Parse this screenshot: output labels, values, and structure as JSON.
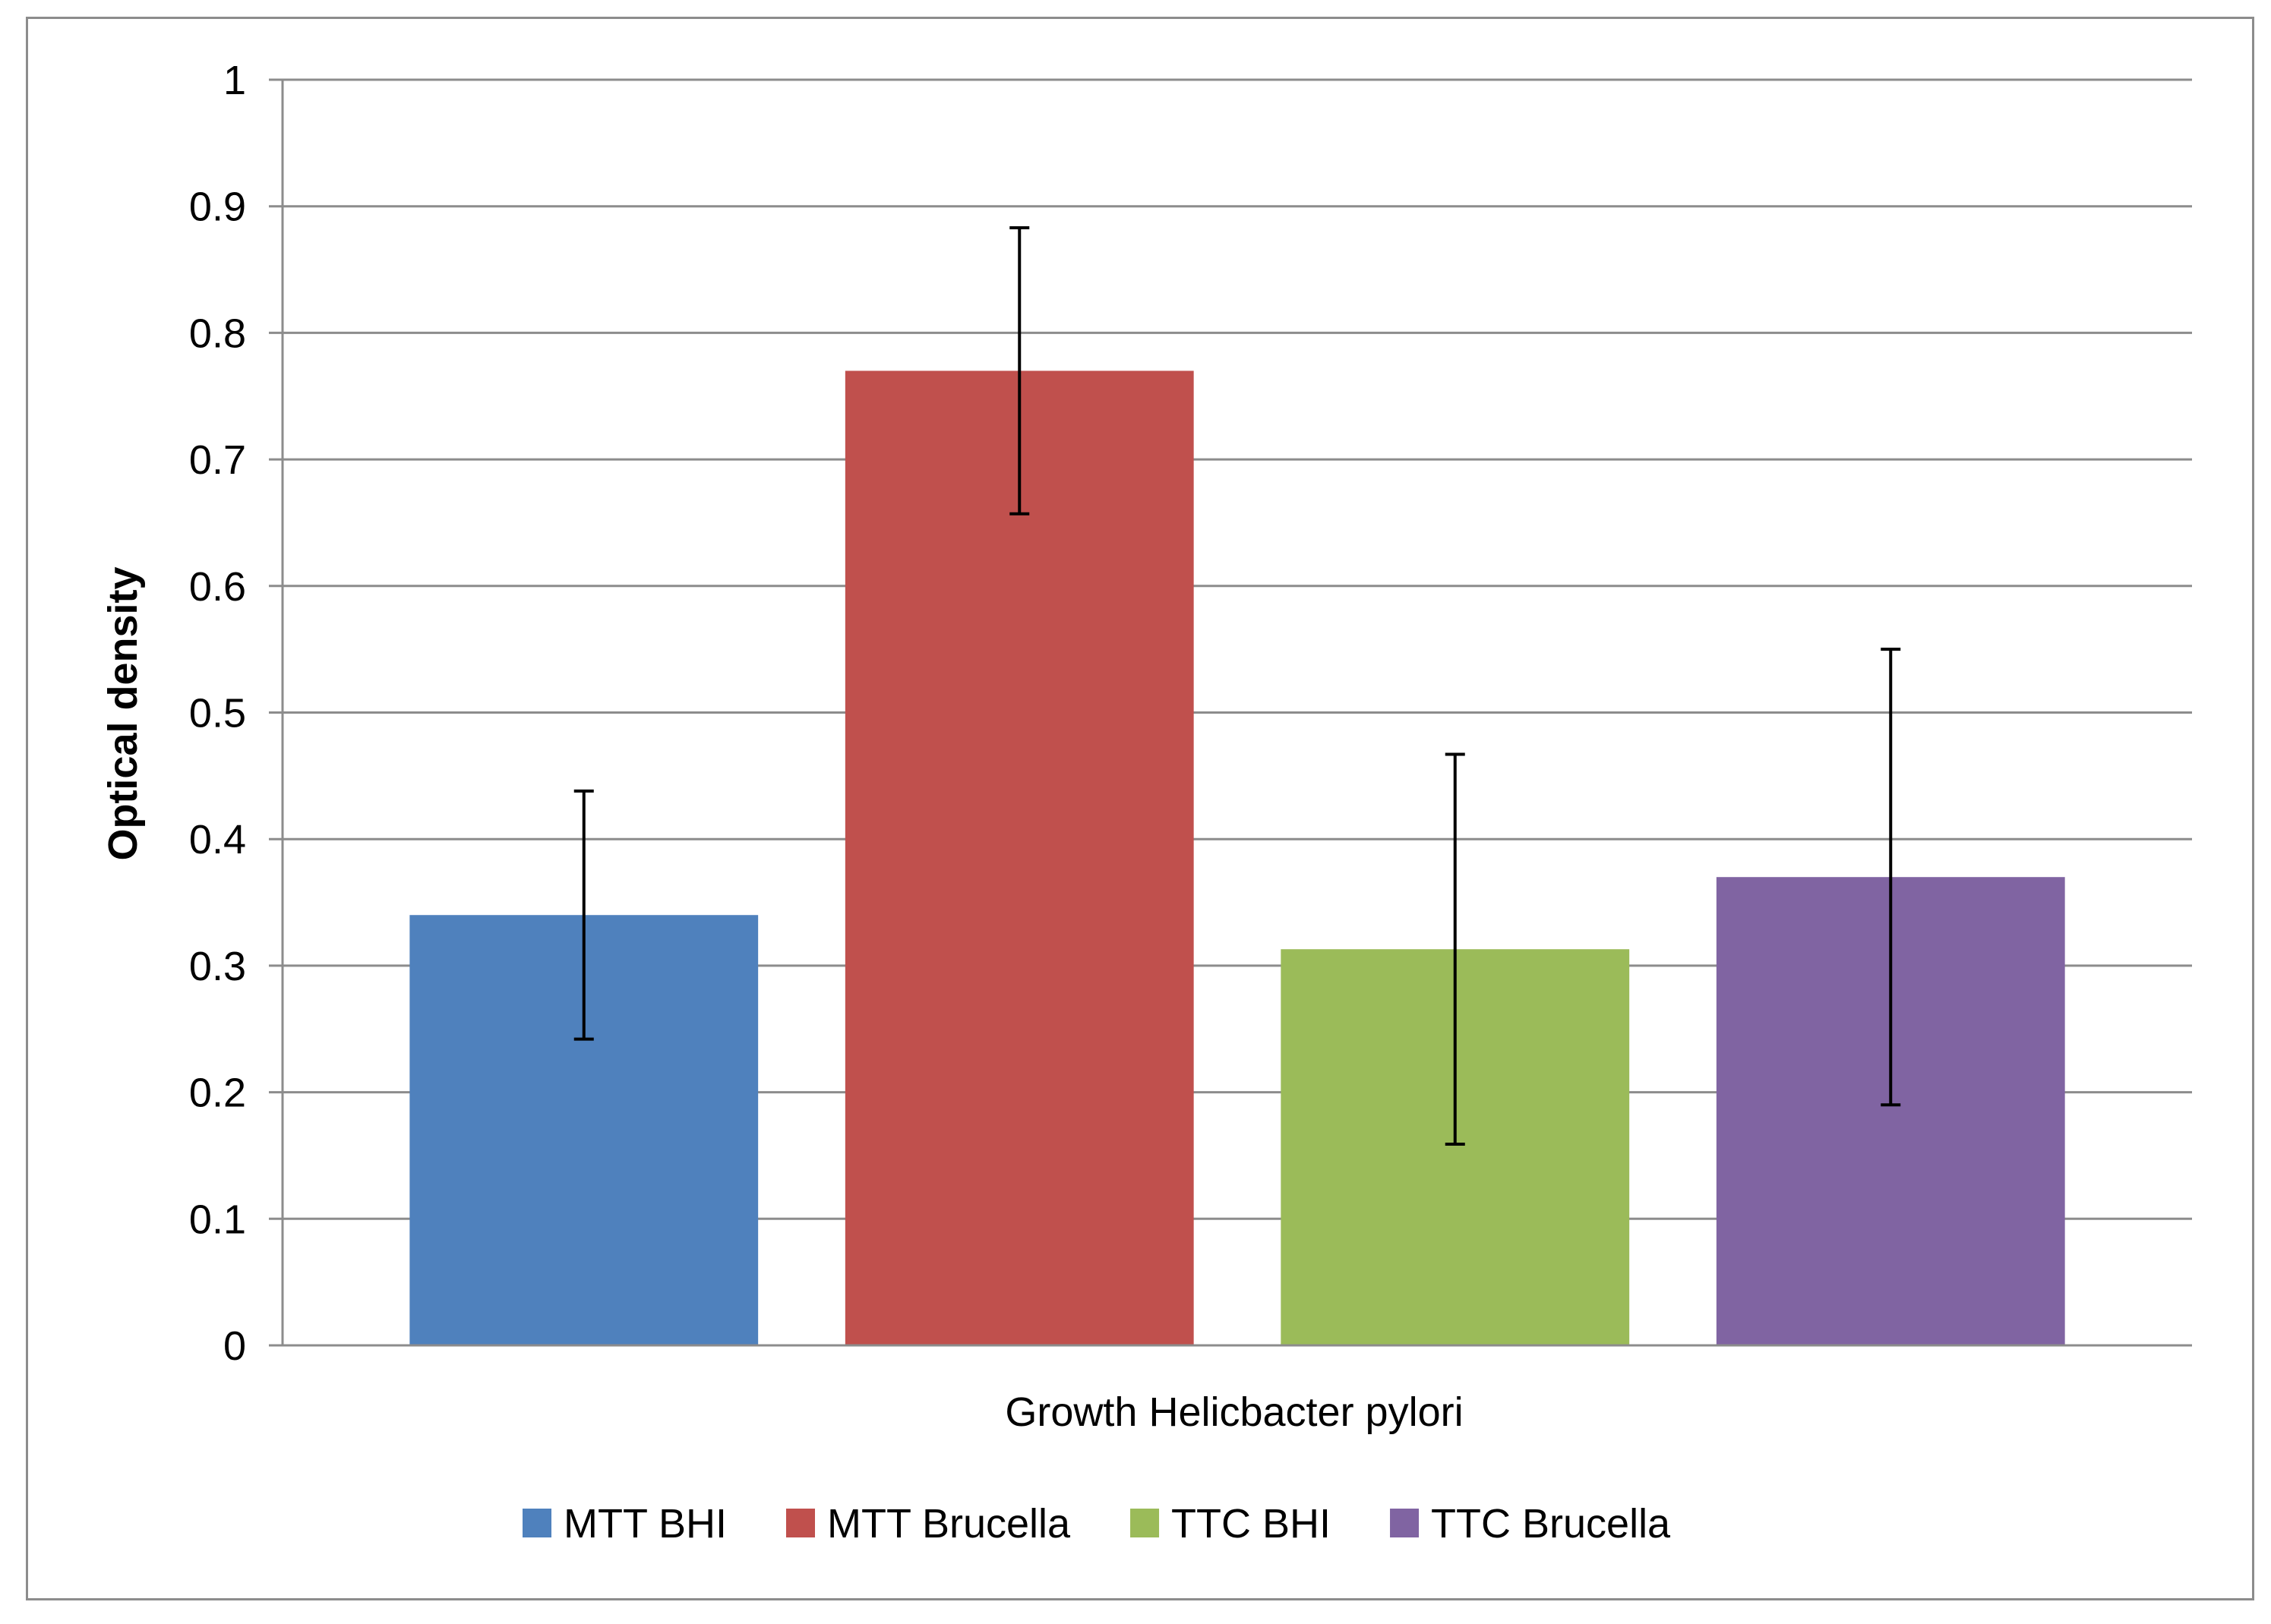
{
  "chart_data": {
    "type": "bar",
    "xlabel": "Growth  Helicbacter pylori",
    "ylabel": "Optical density",
    "ylim": [
      0,
      1
    ],
    "yticks": [
      "0",
      "0.1",
      "0.2",
      "0.3",
      "0.4",
      "0.5",
      "0.6",
      "0.7",
      "0.8",
      "0.9",
      "1"
    ],
    "grid": true,
    "legend_position": "bottom",
    "series": [
      {
        "name": "MTT BHI",
        "value": 0.34,
        "error": 0.098,
        "color": "#4f81bd"
      },
      {
        "name": "MTT Brucella",
        "value": 0.77,
        "error": 0.113,
        "color": "#c0504d"
      },
      {
        "name": "TTC BHI",
        "value": 0.313,
        "error": 0.154,
        "color": "#9bbb59"
      },
      {
        "name": "TTC Brucella",
        "value": 0.37,
        "error": 0.18,
        "color": "#8064a2"
      }
    ]
  }
}
